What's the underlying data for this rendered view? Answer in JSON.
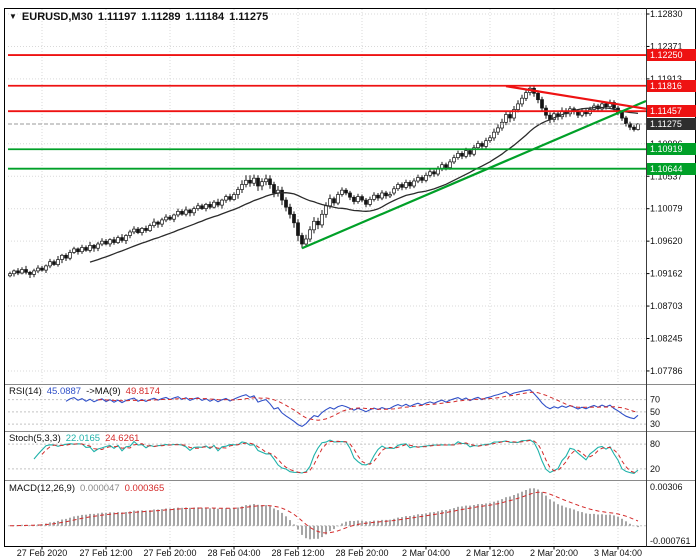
{
  "window": {
    "dropdown_icon": "▼",
    "symbol": "EURUSD,M30",
    "open": "1.11197",
    "high": "1.11289",
    "low": "1.11184",
    "close": "1.11275"
  },
  "colors": {
    "background": "#ffffff",
    "grid": "#d9d9d9",
    "axis_text": "#111111",
    "candle_up": "#ffffff",
    "candle_down": "#141414",
    "candle_border": "#141414",
    "ma_line": "#2b2b2b",
    "resistance": "#ee1212",
    "support": "#00a028",
    "trend_up": "#00a028",
    "trend_down": "#ee1212",
    "current_price_badge": "#2e2e2e",
    "rsi_line": "#3050c8",
    "stoch_line": "#1fb2aa",
    "signal_line": "#d42a2a",
    "macd_histogram": "#a6a6a6"
  },
  "chart_data": {
    "type": "candlestick",
    "symbol": "EURUSD",
    "timeframe": "M30",
    "last_ohlc": {
      "open": 1.11197,
      "high": 1.11289,
      "low": 1.11184,
      "close": 1.11275
    },
    "y_axis": {
      "max": 1.1283,
      "min": 1.07786,
      "labels": [
        "1.12830",
        "1.12371",
        "1.11913",
        "1.11454",
        "1.10996",
        "1.10537",
        "1.10079",
        "1.09620",
        "1.09162",
        "1.08703",
        "1.08245",
        "1.07786"
      ]
    },
    "x_axis": {
      "ticks": [
        {
          "bar": 8,
          "label": "27 Feb 2020"
        },
        {
          "bar": 24,
          "label": "27 Feb 12:00"
        },
        {
          "bar": 40,
          "label": "27 Feb 20:00"
        },
        {
          "bar": 56,
          "label": "28 Feb 04:00"
        },
        {
          "bar": 72,
          "label": "28 Feb 12:00"
        },
        {
          "bar": 88,
          "label": "28 Feb 20:00"
        },
        {
          "bar": 104,
          "label": "2 Mar 04:00"
        },
        {
          "bar": 120,
          "label": "2 Mar 12:00"
        },
        {
          "bar": 136,
          "label": "2 Mar 20:00"
        },
        {
          "bar": 152,
          "label": "3 Mar 04:00"
        }
      ]
    },
    "levels": {
      "resistance": [
        {
          "price": 1.1225,
          "label": "1.12250"
        },
        {
          "price": 1.11816,
          "label": "1.11816"
        },
        {
          "price": 1.11457,
          "label": "1.11457"
        }
      ],
      "support": [
        {
          "price": 1.10919,
          "label": "1.10919"
        },
        {
          "price": 1.10644,
          "label": "1.10644"
        }
      ],
      "current": {
        "price": 1.11275,
        "label": "1.11275"
      }
    },
    "trendlines": [
      {
        "name": "ascending-trendline",
        "color": "trend_up",
        "from": {
          "bar": 73,
          "price": 1.0952
        },
        "to": {
          "bar": 159,
          "price": 1.116
        }
      },
      {
        "name": "descending-trendline",
        "color": "trend_down",
        "from": {
          "bar": 124,
          "price": 1.1181
        },
        "to": {
          "bar": 159,
          "price": 1.1149
        }
      }
    ],
    "ma_period": 21,
    "candles": [
      [
        1.0913,
        1.0919,
        1.0911,
        1.0916
      ],
      [
        1.0916,
        1.0922,
        1.0912,
        1.092
      ],
      [
        1.092,
        1.0924,
        1.0914,
        1.0917
      ],
      [
        1.0917,
        1.0925,
        1.0915,
        1.0922
      ],
      [
        1.0922,
        1.0927,
        1.0915,
        1.0918
      ],
      [
        1.0918,
        1.092,
        1.091,
        1.0915
      ],
      [
        1.0915,
        1.0923,
        1.0911,
        1.092
      ],
      [
        1.092,
        1.0928,
        1.0917,
        1.0924
      ],
      [
        1.0924,
        1.0927,
        1.0919,
        1.0921
      ],
      [
        1.0921,
        1.0929,
        1.0917,
        1.0927
      ],
      [
        1.0927,
        1.0937,
        1.0924,
        1.0933
      ],
      [
        1.0933,
        1.0936,
        1.0927,
        1.0929
      ],
      [
        1.0929,
        1.0941,
        1.0926,
        1.0936
      ],
      [
        1.0936,
        1.0944,
        1.0931,
        1.0942
      ],
      [
        1.0942,
        1.0945,
        1.0934,
        1.0938
      ],
      [
        1.0938,
        1.095,
        1.0935,
        1.0946
      ],
      [
        1.0946,
        1.0954,
        1.0944,
        1.0951
      ],
      [
        1.0951,
        1.0953,
        1.0943,
        1.0947
      ],
      [
        1.0947,
        1.0957,
        1.0944,
        1.0953
      ],
      [
        1.0953,
        1.0956,
        1.0947,
        1.0949
      ],
      [
        1.0949,
        1.0961,
        1.0946,
        1.0956
      ],
      [
        1.0956,
        1.0958,
        1.0947,
        1.0952
      ],
      [
        1.0952,
        1.0961,
        1.0948,
        1.0958
      ],
      [
        1.0958,
        1.0966,
        1.0955,
        1.0962
      ],
      [
        1.0962,
        1.0965,
        1.0956,
        1.0958
      ],
      [
        1.0958,
        1.0966,
        1.0954,
        1.0964
      ],
      [
        1.0964,
        1.0968,
        1.0957,
        1.096
      ],
      [
        1.096,
        1.097,
        1.0958,
        1.0967
      ],
      [
        1.0967,
        1.0972,
        1.096,
        1.0963
      ],
      [
        1.0963,
        1.0972,
        1.0958,
        1.097
      ],
      [
        1.097,
        1.0978,
        1.0966,
        1.0975
      ],
      [
        1.0975,
        1.0983,
        1.0972,
        1.0979
      ],
      [
        1.0979,
        1.0982,
        1.0972,
        1.0974
      ],
      [
        1.0974,
        1.0982,
        1.097,
        1.098
      ],
      [
        1.098,
        1.0984,
        1.0974,
        1.0977
      ],
      [
        1.0977,
        1.0987,
        1.0975,
        1.0984
      ],
      [
        1.0984,
        1.0994,
        1.0981,
        1.0989
      ],
      [
        1.0989,
        1.0991,
        1.0981,
        1.0986
      ],
      [
        1.0986,
        1.0995,
        1.0982,
        1.0992
      ],
      [
        1.0992,
        1.1,
        1.0989,
        1.0996
      ],
      [
        1.0996,
        1.0999,
        1.0991,
        1.0993
      ],
      [
        1.0993,
        1.1001,
        1.0989,
        1.0999
      ],
      [
        1.0999,
        1.1008,
        1.0996,
        1.1004
      ],
      [
        1.1004,
        1.1007,
        1.0998,
        1.1
      ],
      [
        1.1,
        1.1011,
        1.0997,
        1.1006
      ],
      [
        1.1006,
        1.1008,
        1.0997,
        1.1002
      ],
      [
        1.1002,
        1.1011,
        1.0998,
        1.1008
      ],
      [
        1.1008,
        1.1016,
        1.1005,
        1.1012
      ],
      [
        1.1012,
        1.1015,
        1.1006,
        1.1008
      ],
      [
        1.1008,
        1.1016,
        1.1004,
        1.1014
      ],
      [
        1.1014,
        1.1018,
        1.1007,
        1.101
      ],
      [
        1.101,
        1.102,
        1.1008,
        1.1017
      ],
      [
        1.1017,
        1.1022,
        1.101,
        1.1013
      ],
      [
        1.1013,
        1.1022,
        1.1008,
        1.102
      ],
      [
        1.102,
        1.1028,
        1.1016,
        1.1025
      ],
      [
        1.1025,
        1.1029,
        1.1018,
        1.1021
      ],
      [
        1.1021,
        1.1031,
        1.1019,
        1.1028
      ],
      [
        1.1028,
        1.1039,
        1.1022,
        1.1035
      ],
      [
        1.1035,
        1.1048,
        1.103,
        1.1042
      ],
      [
        1.1042,
        1.1055,
        1.1038,
        1.1048
      ],
      [
        1.1048,
        1.1055,
        1.1039,
        1.1044
      ],
      [
        1.1044,
        1.1056,
        1.104,
        1.1051
      ],
      [
        1.1051,
        1.1055,
        1.1033,
        1.104
      ],
      [
        1.104,
        1.1051,
        1.1034,
        1.1046
      ],
      [
        1.1046,
        1.1056,
        1.1041,
        1.105
      ],
      [
        1.105,
        1.1055,
        1.1036,
        1.1042
      ],
      [
        1.1042,
        1.1046,
        1.1024,
        1.103
      ],
      [
        1.103,
        1.104,
        1.1025,
        1.1034
      ],
      [
        1.1034,
        1.1039,
        1.1013,
        1.102
      ],
      [
        1.102,
        1.1024,
        1.1004,
        1.101
      ],
      [
        1.101,
        1.1015,
        1.0994,
        1.1
      ],
      [
        1.1,
        1.1004,
        1.0981,
        1.0988
      ],
      [
        1.0988,
        1.0993,
        1.0962,
        1.097
      ],
      [
        1.097,
        1.0974,
        1.0952,
        1.0958
      ],
      [
        1.0958,
        1.0971,
        1.0953,
        1.0965
      ],
      [
        1.0965,
        1.0983,
        1.0961,
        1.0978
      ],
      [
        1.0978,
        1.0996,
        1.0973,
        1.099
      ],
      [
        1.099,
        1.0995,
        1.0979,
        1.0985
      ],
      [
        1.0985,
        1.1006,
        1.0981,
        1.1
      ],
      [
        1.1,
        1.1017,
        1.0995,
        1.1012
      ],
      [
        1.1012,
        1.1028,
        1.1008,
        1.1022
      ],
      [
        1.1022,
        1.1025,
        1.1012,
        1.1016
      ],
      [
        1.1016,
        1.1032,
        1.1013,
        1.1028
      ],
      [
        1.1028,
        1.1038,
        1.1025,
        1.1034
      ],
      [
        1.1034,
        1.1037,
        1.1027,
        1.103
      ],
      [
        1.103,
        1.1033,
        1.102,
        1.1024
      ],
      [
        1.1024,
        1.1027,
        1.1014,
        1.1018
      ],
      [
        1.1018,
        1.1029,
        1.1015,
        1.1025
      ],
      [
        1.1025,
        1.1028,
        1.1017,
        1.102
      ],
      [
        1.102,
        1.1023,
        1.101,
        1.1014
      ],
      [
        1.1014,
        1.1025,
        1.1011,
        1.1021
      ],
      [
        1.1021,
        1.1031,
        1.1018,
        1.1027
      ],
      [
        1.1027,
        1.103,
        1.1019,
        1.1023
      ],
      [
        1.1023,
        1.1034,
        1.102,
        1.103
      ],
      [
        1.103,
        1.1033,
        1.1022,
        1.1026
      ],
      [
        1.1026,
        1.1032,
        1.1023,
        1.1028
      ],
      [
        1.103,
        1.104,
        1.1027,
        1.1036
      ],
      [
        1.1036,
        1.1045,
        1.1033,
        1.1042
      ],
      [
        1.1042,
        1.1045,
        1.1034,
        1.1038
      ],
      [
        1.1038,
        1.1049,
        1.1035,
        1.1045
      ],
      [
        1.1045,
        1.1048,
        1.1036,
        1.104
      ],
      [
        1.104,
        1.1051,
        1.1037,
        1.1047
      ],
      [
        1.1047,
        1.1056,
        1.1044,
        1.1052
      ],
      [
        1.1052,
        1.1055,
        1.1044,
        1.1048
      ],
      [
        1.1048,
        1.1059,
        1.1045,
        1.1055
      ],
      [
        1.1055,
        1.1064,
        1.1052,
        1.106
      ],
      [
        1.106,
        1.1063,
        1.1053,
        1.1057
      ],
      [
        1.1057,
        1.1068,
        1.1054,
        1.1064
      ],
      [
        1.1064,
        1.1074,
        1.1061,
        1.107
      ],
      [
        1.107,
        1.1073,
        1.1062,
        1.1066
      ],
      [
        1.1066,
        1.1078,
        1.1063,
        1.1074
      ],
      [
        1.1074,
        1.1084,
        1.1071,
        1.108
      ],
      [
        1.108,
        1.109,
        1.1077,
        1.1086
      ],
      [
        1.1086,
        1.1089,
        1.1078,
        1.1082
      ],
      [
        1.1082,
        1.1094,
        1.1079,
        1.109
      ],
      [
        1.109,
        1.1093,
        1.1081,
        1.1085
      ],
      [
        1.1085,
        1.1098,
        1.1082,
        1.1094
      ],
      [
        1.1094,
        1.1104,
        1.1091,
        1.11
      ],
      [
        1.11,
        1.1103,
        1.1092,
        1.1096
      ],
      [
        1.1096,
        1.1108,
        1.1093,
        1.1104
      ],
      [
        1.1104,
        1.1112,
        1.1101,
        1.1108
      ],
      [
        1.1108,
        1.1121,
        1.1104,
        1.1116
      ],
      [
        1.1116,
        1.1127,
        1.1112,
        1.1122
      ],
      [
        1.1122,
        1.1135,
        1.1118,
        1.113
      ],
      [
        1.113,
        1.1146,
        1.1126,
        1.1141
      ],
      [
        1.1141,
        1.1145,
        1.113,
        1.1136
      ],
      [
        1.1136,
        1.1153,
        1.1132,
        1.1148
      ],
      [
        1.1148,
        1.1161,
        1.1144,
        1.1156
      ],
      [
        1.1156,
        1.1169,
        1.1152,
        1.1164
      ],
      [
        1.1164,
        1.1177,
        1.116,
        1.1172
      ],
      [
        1.1172,
        1.1182,
        1.1168,
        1.1178
      ],
      [
        1.1178,
        1.1181,
        1.1166,
        1.1171
      ],
      [
        1.1171,
        1.1175,
        1.1157,
        1.1162
      ],
      [
        1.1162,
        1.1166,
        1.1145,
        1.115
      ],
      [
        1.115,
        1.1154,
        1.1135,
        1.114
      ],
      [
        1.114,
        1.1144,
        1.1129,
        1.1134
      ],
      [
        1.1134,
        1.1147,
        1.113,
        1.1142
      ],
      [
        1.1142,
        1.1146,
        1.1133,
        1.1138
      ],
      [
        1.1138,
        1.1151,
        1.1134,
        1.1146
      ],
      [
        1.1146,
        1.115,
        1.1137,
        1.1142
      ],
      [
        1.1142,
        1.1153,
        1.1138,
        1.1149
      ],
      [
        1.1149,
        1.1152,
        1.1141,
        1.1145
      ],
      [
        1.1145,
        1.1148,
        1.1136,
        1.114
      ],
      [
        1.114,
        1.115,
        1.1137,
        1.1146
      ],
      [
        1.1146,
        1.1149,
        1.1138,
        1.1142
      ],
      [
        1.1142,
        1.1152,
        1.1139,
        1.1148
      ],
      [
        1.1148,
        1.1157,
        1.1145,
        1.1153
      ],
      [
        1.1153,
        1.1156,
        1.1145,
        1.1149
      ],
      [
        1.1149,
        1.116,
        1.1146,
        1.1156
      ],
      [
        1.1156,
        1.1159,
        1.1148,
        1.1152
      ],
      [
        1.1152,
        1.1162,
        1.1149,
        1.1158
      ],
      [
        1.1158,
        1.1161,
        1.1146,
        1.115
      ],
      [
        1.115,
        1.1153,
        1.114,
        1.1144
      ],
      [
        1.1144,
        1.1147,
        1.1132,
        1.1136
      ],
      [
        1.1136,
        1.1139,
        1.1124,
        1.1128
      ],
      [
        1.1128,
        1.1131,
        1.1119,
        1.1123
      ],
      [
        1.1123,
        1.1126,
        1.1117,
        1.11197
      ],
      [
        1.11197,
        1.11289,
        1.11184,
        1.11275
      ]
    ],
    "indicators": {
      "rsi": {
        "name": "RSI(14)",
        "value": "45.0887",
        "ma_name": "->MA(9)",
        "ma_value": "49.8174",
        "period": 14,
        "ma_period": 9,
        "levels": [
          {
            "value": 70,
            "label": "70"
          },
          {
            "value": 50,
            "label": "50"
          },
          {
            "value": 30,
            "label": "30"
          }
        ]
      },
      "stoch": {
        "name": "Stoch(5,3,3)",
        "value": "22.0165",
        "signal_value": "24.6261",
        "k_period": 5,
        "slowing": 3,
        "d_period": 3,
        "levels": [
          {
            "value": 80,
            "label": "80"
          },
          {
            "value": 20,
            "label": "20"
          }
        ]
      },
      "macd": {
        "name": "MACD(12,26,9)",
        "value": "0.000047",
        "signal_value": "0.000365",
        "fast": 12,
        "slow": 26,
        "signal": 9,
        "axis_max_label": "0.00306",
        "axis_min_label": "-0.000761"
      }
    }
  }
}
